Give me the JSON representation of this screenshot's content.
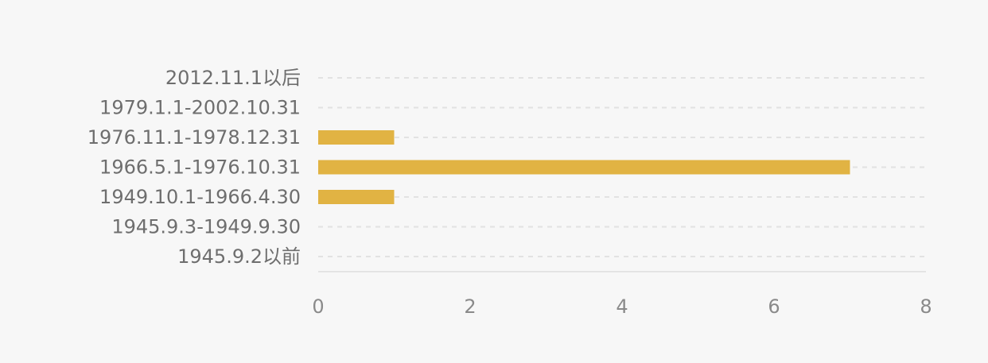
{
  "chart_data": {
    "type": "bar",
    "orientation": "horizontal",
    "categories": [
      "2012.11.1以后",
      "1979.1.1-2002.10.31",
      "1976.11.1-1978.12.31",
      "1966.5.1-1976.10.31",
      "1949.10.1-1966.4.30",
      "1945.9.3-1949.9.30",
      "1945.9.2以前"
    ],
    "values": [
      0,
      0,
      1,
      7,
      1,
      0,
      0
    ],
    "xlim": [
      0,
      8
    ],
    "xticks": [
      "0",
      "2",
      "4",
      "6",
      "8"
    ],
    "title": "",
    "xlabel": "",
    "ylabel": "",
    "grid": "horizontal-dashed",
    "bar_color": "#e1b343"
  }
}
